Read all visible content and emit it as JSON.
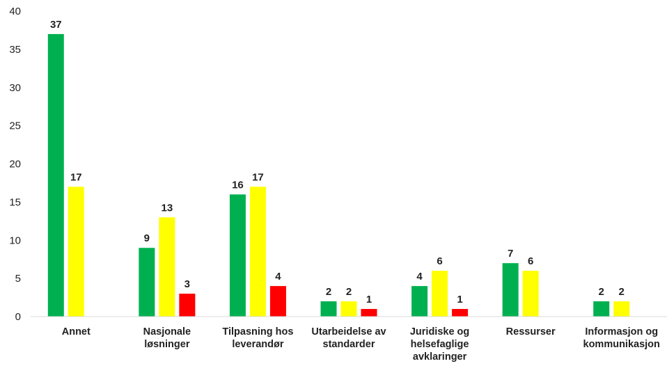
{
  "chart_data": {
    "type": "bar",
    "categories": [
      [
        "Annet"
      ],
      [
        "Nasjonale",
        "løsninger"
      ],
      [
        "Tilpasning hos",
        "leverandør"
      ],
      [
        "Utarbeidelse av",
        "standarder"
      ],
      [
        "Juridiske og",
        "helsefaglige",
        "avklaringer"
      ],
      [
        "Ressurser"
      ],
      [
        "Informasjon og",
        "kommunikasjon"
      ]
    ],
    "series": [
      {
        "color": "#00b050",
        "values": [
          37,
          9,
          16,
          2,
          4,
          7,
          2
        ]
      },
      {
        "color": "#ffff00",
        "values": [
          17,
          13,
          17,
          2,
          6,
          6,
          2
        ]
      },
      {
        "color": "#ff0000",
        "values": [
          null,
          3,
          4,
          1,
          1,
          null,
          null
        ]
      }
    ],
    "ylim": [
      0,
      40
    ],
    "yticks": [
      0,
      5,
      10,
      15,
      20,
      25,
      30,
      35,
      40
    ],
    "grid": false,
    "legend": "none"
  }
}
